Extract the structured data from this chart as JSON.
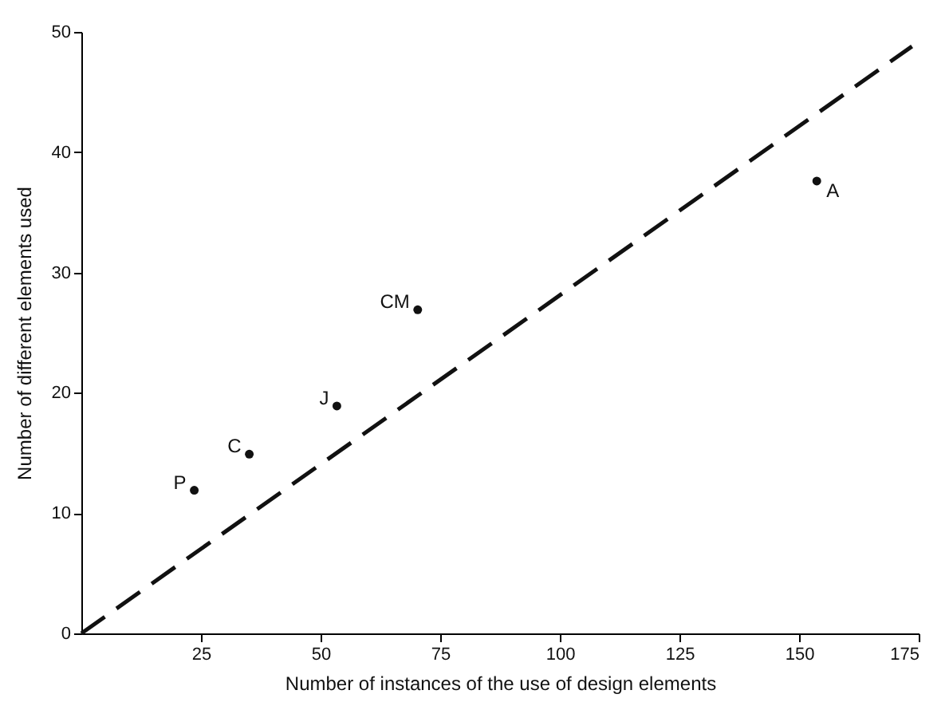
{
  "chart_data": {
    "type": "scatter",
    "xlabel": "Number of instances of the use of design elements",
    "ylabel": "Number of different elements used",
    "xlim": [
      0,
      175
    ],
    "ylim": [
      0,
      50
    ],
    "xticks": [
      25,
      50,
      75,
      100,
      125,
      150,
      175
    ],
    "yticks": [
      0,
      10,
      20,
      30,
      40,
      50
    ],
    "grid": false,
    "marker": "circle",
    "series": [
      {
        "color": "#111111",
        "x": [
          23.6,
          35.1,
          53.4,
          70.3,
          153.7
        ],
        "values": [
          11.9,
          14.9,
          18.9,
          26.9,
          37.6
        ]
      },
      {
        "type": "line",
        "line_style": "dashed",
        "marker": "none",
        "color": "#111111",
        "x": [
          0,
          173.6
        ],
        "values": [
          0,
          48.8
        ]
      }
    ],
    "annotations": [
      {
        "text": "P",
        "x": 23.6,
        "y": 11.9
      },
      {
        "text": "C",
        "x": 35.1,
        "y": 14.9
      },
      {
        "text": "J",
        "x": 53.4,
        "y": 18.9
      },
      {
        "text": "CM",
        "x": 70.3,
        "y": 26.9
      },
      {
        "text": "A",
        "x": 153.7,
        "y": 37.6
      }
    ]
  }
}
